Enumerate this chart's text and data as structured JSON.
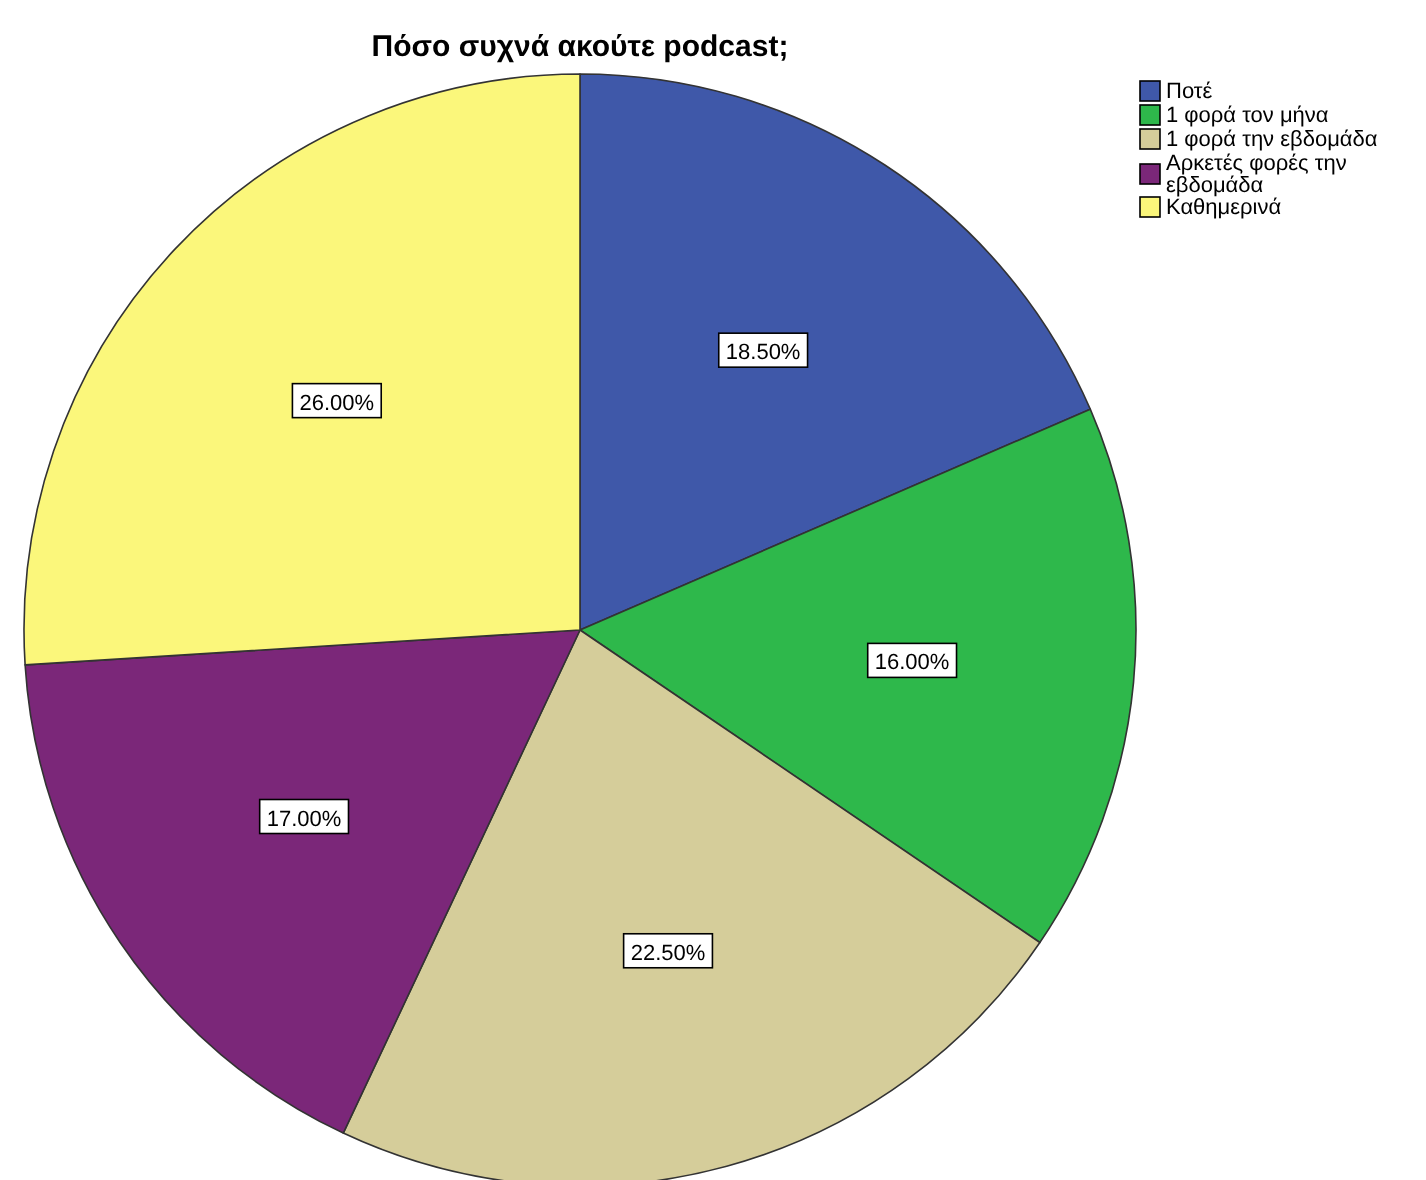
{
  "chart_data": {
    "type": "pie",
    "title": "Πόσο συχνά ακούτε podcast;",
    "categories": [
      "Ποτέ",
      "1 φορά τον μήνα",
      "1 φορά την εβδομάδα",
      "Αρκετές φορές την εβδομάδα",
      "Καθημερινά"
    ],
    "values": [
      18.5,
      16,
      22.5,
      17,
      26
    ],
    "colors": [
      "#3f58a9",
      "#2eb84b",
      "#d5cd9a",
      "#7b2779",
      "#fbf77b"
    ],
    "value_labels": [
      "18.50%",
      "16.00%",
      "22.50%",
      "17.00%",
      "26.00%"
    ],
    "legend": "top right"
  }
}
